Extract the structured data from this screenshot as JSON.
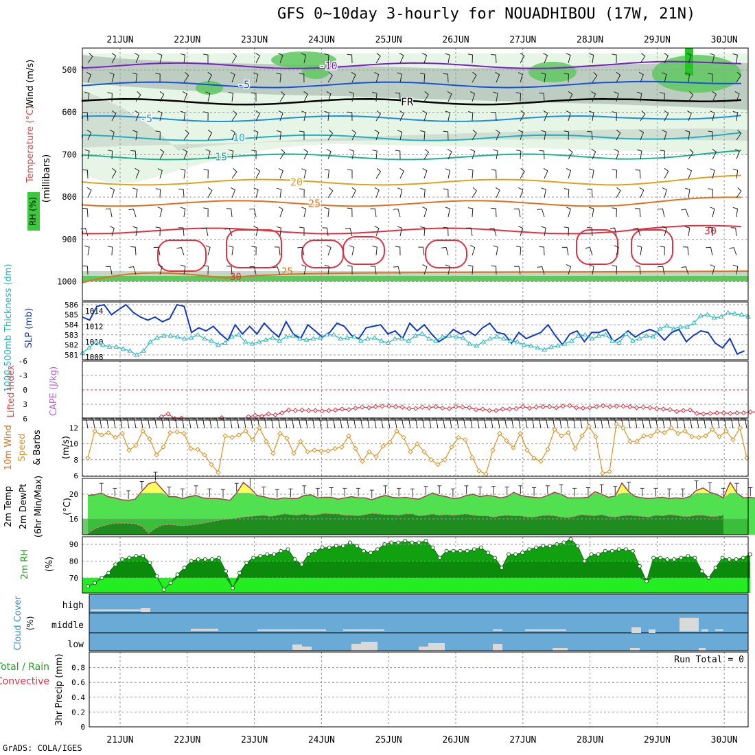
{
  "title": "GFS 0~10day 3-hourly for NOUADHIBOU (17W, 21N)",
  "footer": "GrADS: COLA/IGES",
  "date_labels": [
    "21JUN",
    "22JUN",
    "23JUN",
    "24JUN",
    "25JUN",
    "26JUN",
    "27JUN",
    "28JUN",
    "29JUN",
    "30JUN"
  ],
  "chart_data": [
    {
      "type": "heatmap",
      "panel": "upper-air",
      "ylabel": "(millibars)",
      "side_labels": [
        "Wind (m/s)",
        "Temperature (°C)",
        "RH (%)"
      ],
      "yticks": [
        500,
        600,
        700,
        800,
        900,
        1000
      ],
      "ylim": [
        1000,
        450
      ],
      "isotherms": [
        {
          "label": "-10",
          "pressure": 490
        },
        {
          "label": "-5",
          "pressure": 535
        },
        {
          "label": "FR",
          "pressure": 575
        },
        {
          "label": "-5",
          "pressure": 615
        },
        {
          "label": "10",
          "pressure": 660
        },
        {
          "label": "15",
          "pressure": 705
        },
        {
          "label": "20",
          "pressure": 765
        },
        {
          "label": "25",
          "pressure": 815
        },
        {
          "label": "30",
          "pressure": 880
        }
      ],
      "rh_contour_labels": [
        "30",
        "10",
        "50",
        "70"
      ],
      "colors": {
        "rh_low": "#e6f5e6",
        "rh_mid": "#b9c9bd",
        "rh_high": "#5fc85f",
        "rh_max": "#1ec81e"
      }
    },
    {
      "type": "line",
      "panel": "slp-thickness",
      "ylabel_left": "1000-500mb Thickness (dm)",
      "ylabel_right": "SLP (mb)",
      "yticks_thickness": [
        581,
        582,
        583,
        584,
        585,
        586
      ],
      "yticks_slp": [
        1008,
        1010,
        1012,
        1014
      ],
      "series": [
        {
          "name": "SLP (mb)",
          "color": "#1038c8",
          "values": [
            1013.2,
            1012.8,
            1014.6,
            1014.8,
            1013.5,
            1014.2,
            1014.8,
            1013.8,
            1013.2,
            1012.8,
            1013.2,
            1012.6,
            1013.0,
            1014.8,
            1014.6,
            1011.2,
            1011.8,
            1011.4,
            1012.0,
            1011.0,
            1010.2,
            1012.2,
            1011.0,
            1012.0,
            1011.0,
            1012.4,
            1011.4,
            1010.6,
            1012.6,
            1011.0,
            1010.4,
            1012.2,
            1011.4,
            1010.6,
            1011.2,
            1012.4,
            1012.0,
            1010.8,
            1010.4,
            1011.8,
            1012.0,
            1012.2,
            1011.0,
            1011.4,
            1010.4,
            1012.4,
            1011.4,
            1012.2,
            1011.0,
            1010.0,
            1010.6,
            1011.6,
            1011.0,
            1011.4,
            1010.8,
            1011.8,
            1012.4,
            1011.2,
            1011.0,
            1009.8,
            1011.2,
            1010.4,
            1010.8,
            1011.2,
            1012.2,
            1010.8,
            1009.6,
            1011.0,
            1011.4,
            1010.0,
            1011.2,
            1011.2,
            1011.6,
            1010.0,
            1010.6,
            1011.4,
            1010.6,
            1011.2,
            1011.6,
            1011.2,
            1010.2,
            1011.2,
            1011.6,
            1010.0,
            1010.8,
            1011.4,
            1011.2,
            1009.8,
            1009.2,
            1010.4,
            1008.4,
            1008.8
          ]
        },
        {
          "name": "1000-500mb Thickness (dm)",
          "color": "#20b8c0",
          "values": [
            581.2,
            581.7,
            582.3,
            582.0,
            581.8,
            581.8,
            581.6,
            581.4,
            581.0,
            581.4,
            582.3,
            582.7,
            582.9,
            582.9,
            582.8,
            582.6,
            582.7,
            583.0,
            582.6,
            582.4,
            582.0,
            582.2,
            582.8,
            583.0,
            582.3,
            582.1,
            582.3,
            582.5,
            582.7,
            582.4,
            582.8,
            582.9,
            582.6,
            582.5,
            582.6,
            582.7,
            583.0,
            583.0,
            582.6,
            582.7,
            582.8,
            582.4,
            582.6,
            582.7,
            582.4,
            582.2,
            582.6,
            582.6,
            582.4,
            582.9,
            583.1,
            582.6,
            582.4,
            582.8,
            582.9,
            582.8,
            582.7,
            582.1,
            581.9,
            582.3,
            582.6,
            582.8,
            582.6,
            582.4,
            582.3,
            582.0,
            581.9,
            581.7,
            581.5,
            581.8,
            581.9,
            582.1,
            582.4,
            582.9,
            583.0,
            582.6,
            582.9,
            583.0,
            582.4,
            582.2,
            583.1,
            582.4,
            582.6,
            582.9,
            582.8,
            583.6,
            583.9,
            583.6,
            583.8,
            583.8,
            584.2,
            584.9,
            585.0,
            584.7,
            584.8,
            585.2,
            585.1,
            585.0,
            584.8
          ]
        }
      ]
    },
    {
      "type": "line",
      "panel": "cape-li",
      "ylabel_left": "Lifted Index",
      "ylabel_right": "CAPE (J/kg)",
      "yticks": [
        -6,
        -3,
        0,
        3,
        6
      ],
      "ylim": [
        6,
        -6
      ],
      "series": [
        {
          "name": "Lifted Index",
          "color": "#e03040",
          "values": [
            null,
            null,
            null,
            null,
            null,
            null,
            null,
            null,
            null,
            null,
            null,
            5.6,
            5.0,
            6.0,
            5.9,
            null,
            null,
            null,
            null,
            null,
            5.8,
            null,
            null,
            null,
            5.6,
            5.3,
            5.5,
            5.0,
            5.2,
            4.8,
            4.2,
            4.3,
            4.2,
            4.3,
            4.3,
            4.4,
            4.3,
            4.2,
            4.0,
            4.1,
            3.8,
            3.6,
            3.7,
            3.5,
            3.4,
            3.4,
            3.5,
            3.6,
            3.9,
            3.9,
            3.6,
            3.7,
            3.5,
            3.8,
            3.9,
            3.5,
            3.6,
            3.7,
            4.1,
            4.0,
            4.3,
            4.3,
            4.0,
            4.0,
            3.9,
            3.5,
            3.8,
            3.6,
            3.5,
            3.5,
            3.7,
            3.4,
            3.3,
            3.7,
            3.8,
            3.7,
            3.5,
            3.3,
            3.5,
            3.4,
            3.4,
            3.5,
            3.7,
            3.6,
            3.7,
            3.9,
            4.0,
            4.1,
            4.5,
            4.3,
            4.2,
            4.9,
            5.0,
            4.9,
            4.8,
            4.8,
            4.9,
            4.8,
            4.8,
            4.6,
            4.6
          ]
        }
      ]
    },
    {
      "type": "line",
      "panel": "wind10m",
      "ylabel": "10m Wind Speed & Barbs (m/s)",
      "yticks": [
        6,
        8,
        10,
        12
      ],
      "ylim": [
        6,
        12.5
      ],
      "series": [
        {
          "name": "10m Wind Speed",
          "color": "#e09020",
          "values": [
            8.2,
            11.6,
            11.1,
            11.4,
            10.8,
            11.3,
            9.2,
            9.8,
            11.6,
            10.6,
            8.6,
            9.6,
            11.4,
            11.5,
            11.3,
            9.4,
            9.3,
            8.6,
            7.4,
            6.4,
            11.0,
            10.8,
            11.1,
            11.6,
            10.5,
            12.0,
            10.3,
            8.8,
            11.3,
            10.7,
            8.8,
            10.3,
            9.0,
            9.2,
            9.1,
            9.1,
            9.4,
            9.6,
            11.0,
            9.4,
            7.8,
            9.0,
            8.4,
            9.7,
            10.2,
            11.6,
            10.8,
            9.0,
            10.0,
            9.0,
            8.0,
            7.4,
            8.0,
            9.6,
            10.8,
            10.5,
            8.3,
            6.6,
            6.2,
            9.2,
            11.3,
            10.4,
            9.5,
            11.3,
            9.2,
            8.2,
            7.8,
            9.3,
            11.8,
            11.0,
            11.4,
            9.4,
            11.0,
            12.2,
            10.9,
            6.3,
            6.5,
            12.5,
            12.0,
            10.3,
            10.3,
            11.0,
            11.0,
            11.6,
            11.4,
            12.0,
            11.3,
            11.6,
            10.9,
            10.8,
            11.0,
            11.8,
            10.9,
            11.6,
            10.5,
            12.0,
            8.2
          ]
        }
      ]
    },
    {
      "type": "area",
      "panel": "temp2m",
      "ylabel": "2m Temp 2m DewPt (6hr Min/Max) (°C)",
      "yticks": [
        16,
        20
      ],
      "ylim": [
        13.3,
        23.4
      ],
      "series": [
        {
          "name": "2m Temp",
          "color": "#a04040",
          "values": [
            19.8,
            19.9,
            20.2,
            19.6,
            19.4,
            19.1,
            19.0,
            19.2,
            20.5,
            21.7,
            22.0,
            20.8,
            19.6,
            19.6,
            19.3,
            19.6,
            19.8,
            19.4,
            19.3,
            19.3,
            19.2,
            19.0,
            20.2,
            21.9,
            21.0,
            19.8,
            19.6,
            19.3,
            19.2,
            19.4,
            19.3,
            19.3,
            19.8,
            19.9,
            19.4,
            19.5,
            19.5,
            19.2,
            19.4,
            19.6,
            19.4,
            19.4,
            19.1,
            19.5,
            19.8,
            19.5,
            19.4,
            19.5,
            19.3,
            19.2,
            19.7,
            20.2,
            19.8,
            19.6,
            19.3,
            19.4,
            19.8,
            20.0,
            19.6,
            19.8,
            19.7,
            19.4,
            19.6,
            20.3,
            19.8,
            19.6,
            19.5,
            19.4,
            19.8,
            20.3,
            20.0,
            19.4,
            19.4,
            19.4,
            19.5,
            20.4,
            20.0,
            19.5,
            19.7,
            21.8,
            20.4,
            19.6,
            19.4,
            19.3,
            19.4,
            19.5,
            19.3,
            19.4,
            19.3,
            19.6,
            20.6,
            21.0,
            20.3,
            20.0,
            19.4,
            21.9,
            20.2,
            19.4,
            19.5,
            19.3
          ]
        },
        {
          "name": "2m DewPt",
          "color": "#c04a4a",
          "values": [
            13.7,
            14.4,
            14.8,
            15.1,
            15.3,
            15.3,
            15.3,
            15.2,
            14.8,
            13.7,
            14.5,
            15.0,
            15.1,
            15.0,
            14.9,
            15.0,
            15.1,
            15.3,
            15.5,
            15.7,
            15.9,
            16.0,
            16.1,
            16.3,
            16.4,
            16.5,
            16.6,
            16.4,
            16.6,
            16.8,
            16.7,
            16.6,
            16.8,
            16.6,
            16.7,
            16.9,
            16.8,
            16.8,
            16.6,
            16.6,
            16.5,
            16.7,
            16.9,
            16.8,
            16.7,
            16.7,
            16.6,
            16.8,
            16.8,
            16.5,
            16.6,
            16.8,
            16.6,
            16.7,
            16.6,
            16.7,
            16.8,
            16.6,
            16.5,
            16.5,
            16.3,
            16.5,
            16.6,
            16.5,
            16.5,
            16.3,
            16.3,
            16.5,
            16.6,
            16.5,
            16.3,
            16.2,
            16.4,
            16.7,
            16.6,
            16.5,
            16.7,
            16.4,
            16.3,
            16.5,
            16.6,
            16.5,
            16.4,
            16.3,
            16.6,
            16.5,
            16.7,
            16.6,
            16.4,
            16.4,
            16.6,
            16.6,
            16.4,
            16.4,
            16.6
          ]
        }
      ]
    },
    {
      "type": "area",
      "panel": "rh2m",
      "ylabel": "2m RH (%)",
      "yticks": [
        70,
        80,
        90
      ],
      "ylim": [
        63,
        93
      ],
      "series": [
        {
          "name": "2m RH",
          "color": "#1e8c1e",
          "values": [
            65,
            67,
            70,
            73,
            78,
            81,
            82,
            83,
            83,
            79,
            71,
            63,
            67,
            72,
            76,
            80,
            81,
            81,
            81,
            82,
            74,
            64,
            73,
            79,
            82,
            83,
            84,
            84,
            86,
            87,
            81,
            78,
            84,
            86,
            88,
            88,
            89,
            89,
            91,
            89,
            86,
            85,
            87,
            90,
            91,
            91,
            92,
            91,
            91,
            92,
            88,
            82,
            86,
            86,
            86,
            86,
            87,
            88,
            85,
            82,
            76,
            84,
            84,
            85,
            87,
            88,
            89,
            89,
            90,
            91,
            93,
            89,
            80,
            84,
            84,
            86,
            86,
            87,
            87,
            86,
            77,
            68,
            82,
            82,
            81,
            81,
            82,
            83,
            82,
            74,
            70,
            76,
            82,
            81,
            81,
            82,
            84
          ]
        }
      ]
    },
    {
      "type": "bar",
      "panel": "cloud",
      "ylabel": "Cloud Cover (%)",
      "categories": [
        "high",
        "middle",
        "low"
      ],
      "colors": {
        "background": "#6aaad6",
        "cloud": "#d9d9d9"
      }
    },
    {
      "type": "bar",
      "panel": "precip",
      "ylabel": "3hr Precip (mm)",
      "legend": [
        "Total / Rain",
        "Convective"
      ],
      "yticks": [
        0,
        0.2,
        0.4,
        0.6,
        0.8
      ],
      "ylim": [
        0,
        1
      ],
      "annotation": "Run Total = 0",
      "values": []
    }
  ]
}
